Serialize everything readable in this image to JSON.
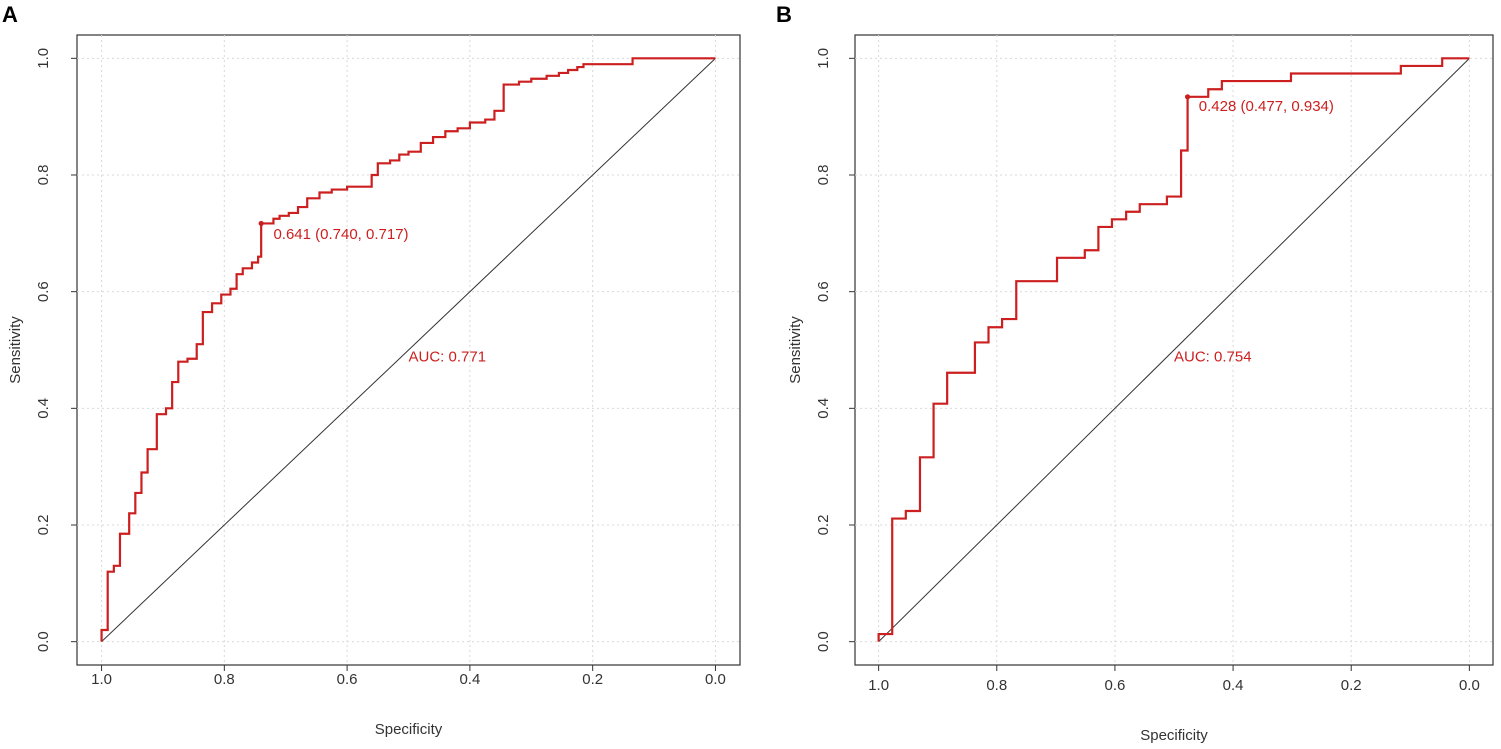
{
  "chart_data": [
    {
      "panel_label": "A",
      "type": "line",
      "title": "",
      "xlabel": "Specificity",
      "ylabel": "Sensitivity",
      "xlim": [
        1.04,
        -0.04
      ],
      "ylim": [
        -0.04,
        1.04
      ],
      "xticks": [
        1.0,
        0.8,
        0.6,
        0.4,
        0.2,
        0.0
      ],
      "xtick_labels": [
        "1.0",
        "0.8",
        "0.6",
        "0.4",
        "0.2",
        "0.0"
      ],
      "yticks": [
        0.0,
        0.2,
        0.4,
        0.6,
        0.8,
        1.0
      ],
      "ytick_labels": [
        "0.0",
        "0.2",
        "0.4",
        "0.6",
        "0.8",
        "1.0"
      ],
      "grid": true,
      "reference_line": {
        "from": [
          1,
          0
        ],
        "to": [
          0,
          1
        ],
        "color": "#333333"
      },
      "series": [
        {
          "name": "ROC",
          "color": "#cc1f1f",
          "specificity": [
            1.0,
            1.0,
            0.99,
            0.99,
            0.98,
            0.98,
            0.97,
            0.97,
            0.955,
            0.955,
            0.945,
            0.945,
            0.935,
            0.935,
            0.925,
            0.925,
            0.91,
            0.91,
            0.895,
            0.895,
            0.885,
            0.885,
            0.875,
            0.875,
            0.86,
            0.86,
            0.845,
            0.845,
            0.835,
            0.835,
            0.82,
            0.82,
            0.805,
            0.805,
            0.79,
            0.79,
            0.78,
            0.78,
            0.77,
            0.77,
            0.755,
            0.755,
            0.745,
            0.745,
            0.74,
            0.74,
            0.72,
            0.72,
            0.71,
            0.71,
            0.695,
            0.695,
            0.68,
            0.68,
            0.665,
            0.665,
            0.645,
            0.645,
            0.625,
            0.625,
            0.6,
            0.6,
            0.56,
            0.56,
            0.55,
            0.55,
            0.53,
            0.53,
            0.515,
            0.515,
            0.5,
            0.5,
            0.48,
            0.48,
            0.46,
            0.46,
            0.44,
            0.44,
            0.42,
            0.42,
            0.4,
            0.4,
            0.375,
            0.375,
            0.36,
            0.36,
            0.345,
            0.345,
            0.32,
            0.32,
            0.3,
            0.3,
            0.275,
            0.275,
            0.255,
            0.255,
            0.24,
            0.24,
            0.225,
            0.225,
            0.215,
            0.215,
            0.195,
            0.195,
            0.135,
            0.135,
            0.0
          ],
          "sensitivity": [
            0.0,
            0.02,
            0.02,
            0.12,
            0.12,
            0.13,
            0.13,
            0.185,
            0.185,
            0.22,
            0.22,
            0.255,
            0.255,
            0.29,
            0.29,
            0.33,
            0.33,
            0.39,
            0.39,
            0.4,
            0.4,
            0.445,
            0.445,
            0.48,
            0.48,
            0.485,
            0.485,
            0.51,
            0.51,
            0.565,
            0.565,
            0.58,
            0.58,
            0.595,
            0.595,
            0.605,
            0.605,
            0.63,
            0.63,
            0.64,
            0.64,
            0.65,
            0.65,
            0.66,
            0.66,
            0.717,
            0.717,
            0.725,
            0.725,
            0.73,
            0.73,
            0.735,
            0.735,
            0.745,
            0.745,
            0.76,
            0.76,
            0.77,
            0.77,
            0.775,
            0.775,
            0.78,
            0.78,
            0.8,
            0.8,
            0.82,
            0.82,
            0.825,
            0.825,
            0.835,
            0.835,
            0.84,
            0.84,
            0.855,
            0.855,
            0.865,
            0.865,
            0.875,
            0.875,
            0.88,
            0.88,
            0.89,
            0.89,
            0.895,
            0.895,
            0.91,
            0.91,
            0.955,
            0.955,
            0.96,
            0.96,
            0.965,
            0.965,
            0.97,
            0.97,
            0.975,
            0.975,
            0.98,
            0.98,
            0.985,
            0.985,
            0.99,
            0.99,
            0.99,
            0.99,
            1.0,
            1.0
          ]
        }
      ],
      "best_point": {
        "specificity": 0.74,
        "sensitivity": 0.717
      },
      "annotations": [
        {
          "text": "0.641 (0.740, 0.717)",
          "x": 0.72,
          "y": 0.69,
          "color": "#cc1f1f"
        },
        {
          "text": "AUC: 0.771",
          "x": 0.5,
          "y": 0.48,
          "color": "#cc1f1f"
        }
      ]
    },
    {
      "panel_label": "B",
      "type": "line",
      "title": "",
      "xlabel": "Specificity",
      "ylabel": "Sensitivity",
      "xlim": [
        1.04,
        -0.04
      ],
      "ylim": [
        -0.04,
        1.04
      ],
      "xticks": [
        1.0,
        0.8,
        0.6,
        0.4,
        0.2,
        0.0
      ],
      "xtick_labels": [
        "1.0",
        "0.8",
        "0.6",
        "0.4",
        "0.2",
        "0.0"
      ],
      "yticks": [
        0.0,
        0.2,
        0.4,
        0.6,
        0.8,
        1.0
      ],
      "ytick_labels": [
        "0.0",
        "0.2",
        "0.4",
        "0.6",
        "0.8",
        "1.0"
      ],
      "grid": true,
      "reference_line": {
        "from": [
          1,
          0
        ],
        "to": [
          0,
          1
        ],
        "color": "#333333"
      },
      "series": [
        {
          "name": "ROC",
          "color": "#cc1f1f",
          "specificity": [
            1.0,
            1.0,
            0.977,
            0.977,
            0.954,
            0.954,
            0.93,
            0.93,
            0.907,
            0.907,
            0.884,
            0.884,
            0.837,
            0.837,
            0.814,
            0.814,
            0.791,
            0.791,
            0.767,
            0.767,
            0.698,
            0.698,
            0.651,
            0.651,
            0.628,
            0.628,
            0.605,
            0.605,
            0.581,
            0.581,
            0.558,
            0.558,
            0.512,
            0.512,
            0.488,
            0.488,
            0.477,
            0.477,
            0.442,
            0.442,
            0.419,
            0.419,
            0.302,
            0.302,
            0.116,
            0.116,
            0.046,
            0.046,
            0.0
          ],
          "sensitivity": [
            0.0,
            0.013,
            0.013,
            0.211,
            0.211,
            0.224,
            0.224,
            0.316,
            0.316,
            0.408,
            0.408,
            0.461,
            0.461,
            0.513,
            0.513,
            0.539,
            0.539,
            0.553,
            0.553,
            0.618,
            0.618,
            0.658,
            0.658,
            0.671,
            0.671,
            0.711,
            0.711,
            0.724,
            0.724,
            0.737,
            0.737,
            0.75,
            0.75,
            0.763,
            0.763,
            0.842,
            0.842,
            0.934,
            0.934,
            0.947,
            0.947,
            0.961,
            0.961,
            0.974,
            0.974,
            0.987,
            0.987,
            1.0,
            1.0
          ]
        }
      ],
      "best_point": {
        "specificity": 0.477,
        "sensitivity": 0.934
      },
      "annotations": [
        {
          "text": "0.428 (0.477, 0.934)",
          "x": 0.458,
          "y": 0.91,
          "color": "#cc1f1f"
        },
        {
          "text": "AUC: 0.754",
          "x": 0.5,
          "y": 0.48,
          "color": "#cc1f1f"
        }
      ]
    }
  ]
}
